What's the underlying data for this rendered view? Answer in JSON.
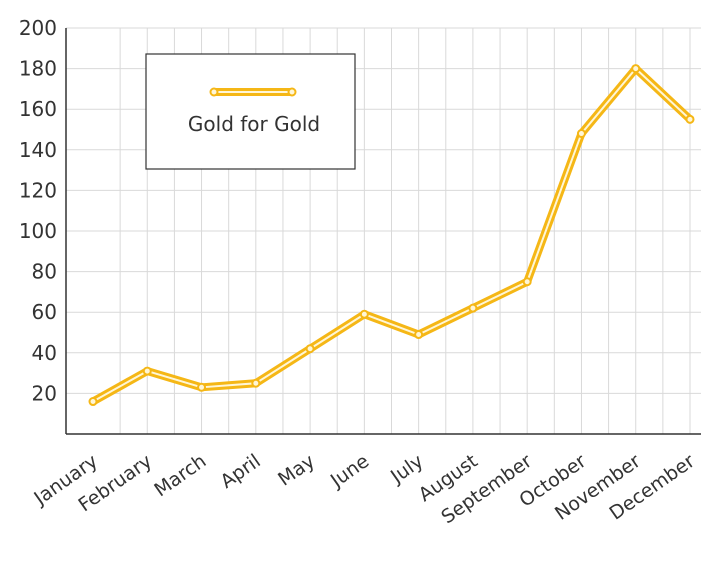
{
  "chart_data": {
    "type": "line",
    "title": "",
    "xlabel": "",
    "ylabel": "",
    "categories": [
      "January",
      "February",
      "March",
      "April",
      "May",
      "June",
      "July",
      "August",
      "September",
      "October",
      "November",
      "December"
    ],
    "series": [
      {
        "name": "Gold for Gold",
        "values": [
          16,
          31,
          23,
          25,
          42,
          59,
          49,
          62,
          75,
          148,
          180,
          155
        ]
      }
    ],
    "ylim": [
      0,
      200
    ],
    "yticks": [
      20,
      40,
      60,
      80,
      100,
      120,
      140,
      160,
      180,
      200
    ],
    "grid": true,
    "legend_position": "top-left",
    "colors": {
      "series": "#f5b716",
      "series_inner": "#fff6d6",
      "grid": "#d9d9d9",
      "axis": "#333333"
    }
  }
}
